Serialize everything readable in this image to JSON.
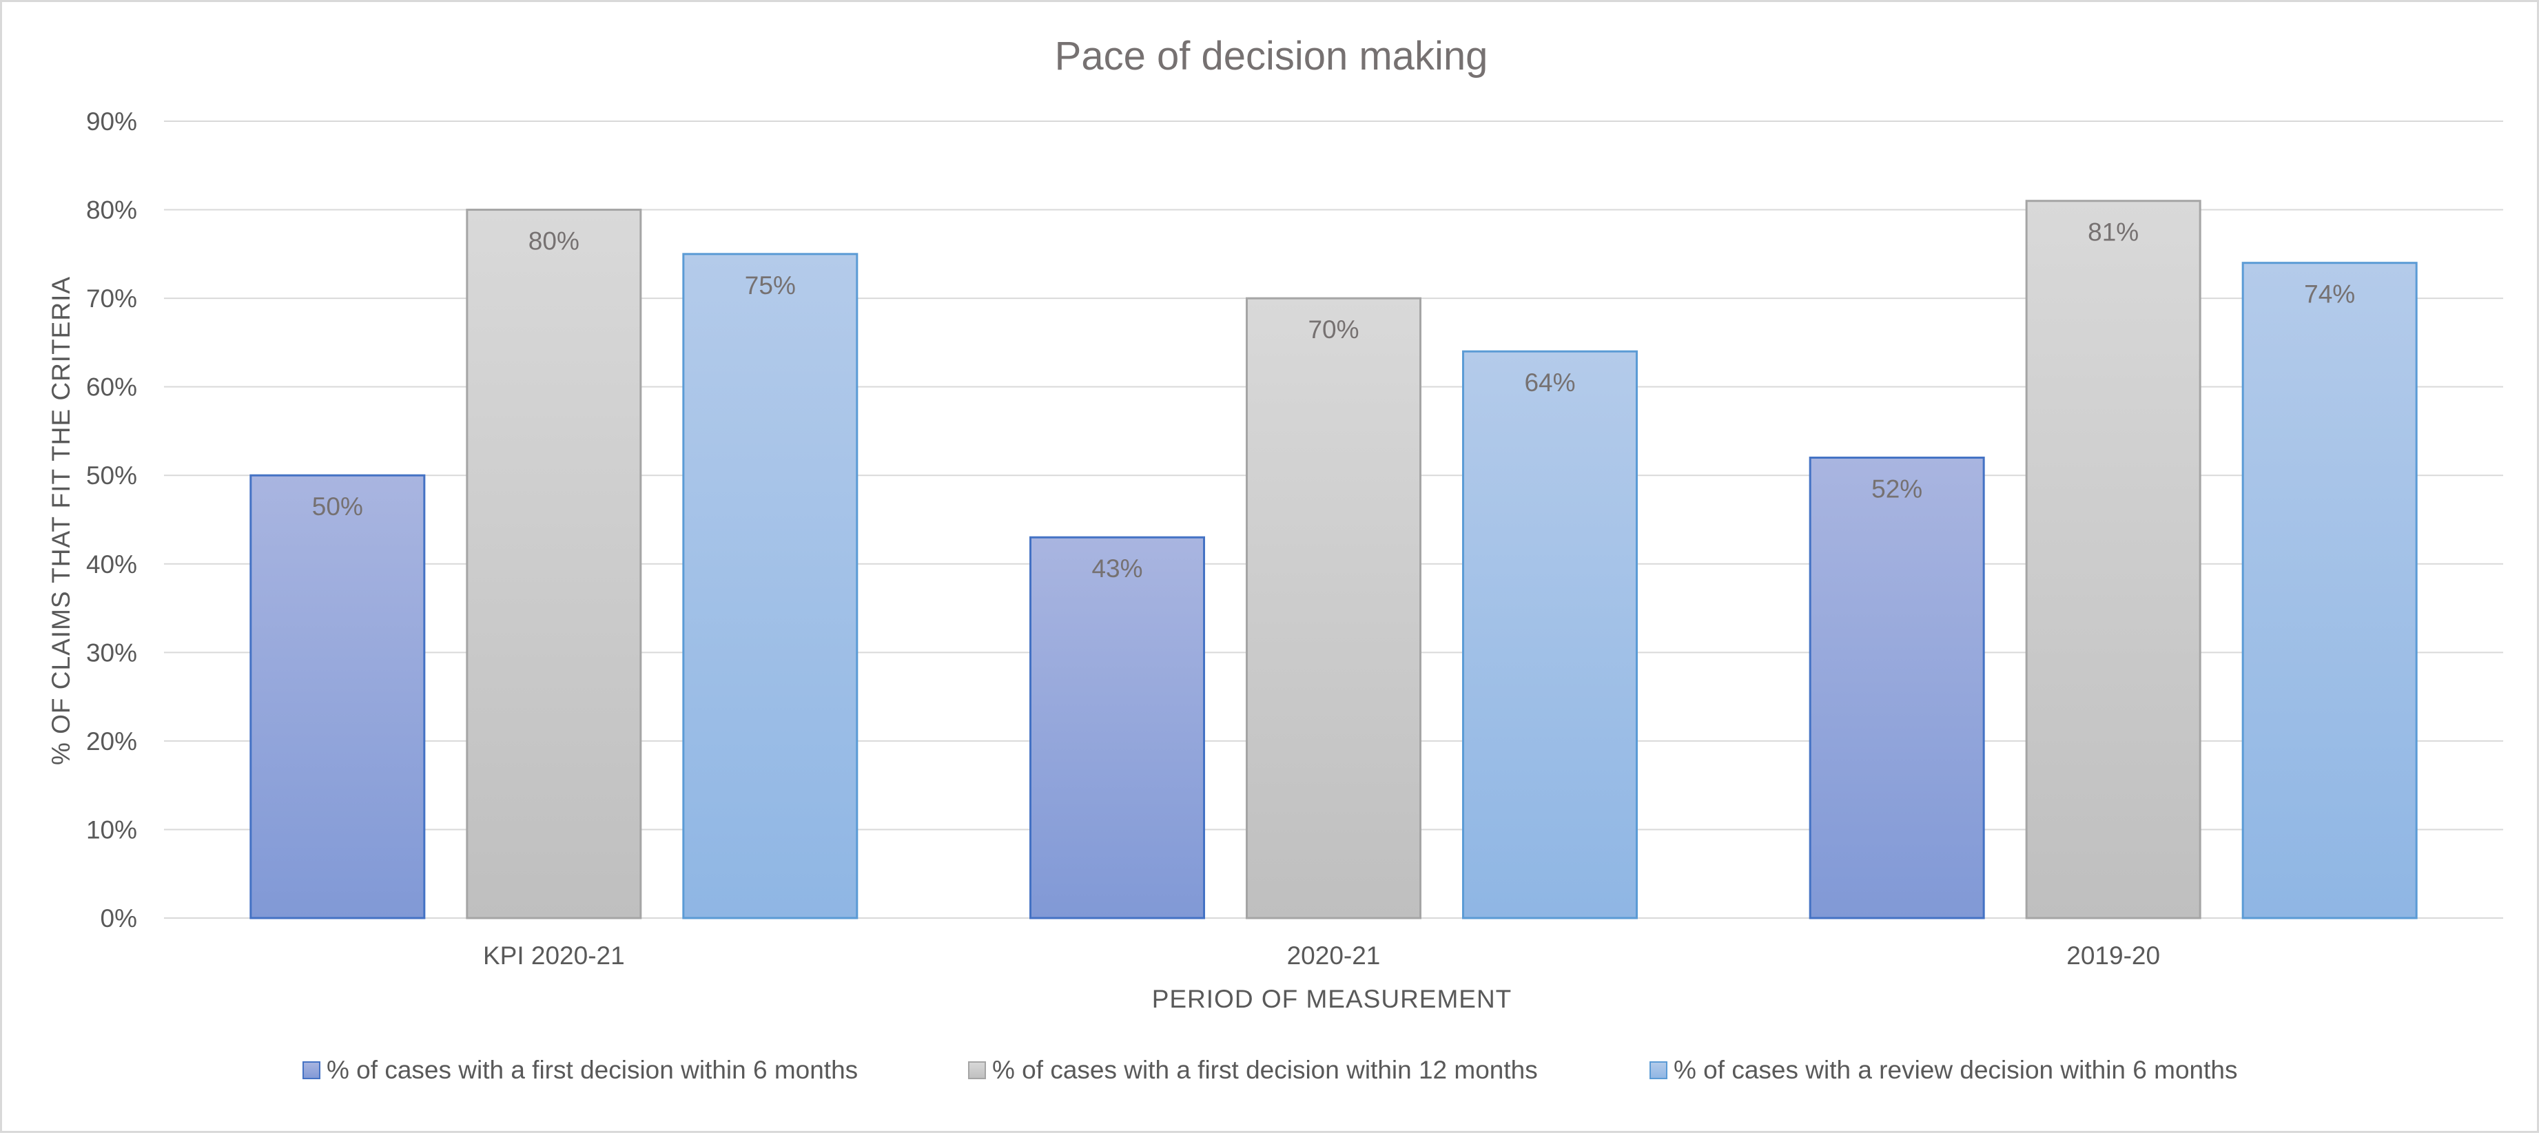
{
  "chart_data": {
    "type": "bar",
    "title": "Pace of decision making",
    "xlabel": "PERIOD OF MEASUREMENT",
    "ylabel": "% OF CLAIMS THAT FIT THE CRITERIA",
    "ylim": [
      0,
      90
    ],
    "yticks": [
      0,
      10,
      20,
      30,
      40,
      50,
      60,
      70,
      80,
      90
    ],
    "ytick_suffix": "%",
    "grid": true,
    "legend_position": "bottom",
    "categories": [
      "KPI 2020-21",
      "2020-21",
      "2019-20"
    ],
    "series": [
      {
        "name": "% of cases with a first decision within 6 months",
        "values": [
          50,
          43,
          52
        ],
        "labels": [
          "50%",
          "43%",
          "52%"
        ],
        "color_top": "#a9b5e0",
        "color_bottom": "#8199d6",
        "stroke": "#4472c4"
      },
      {
        "name": "% of cases with a first decision within 12 months",
        "values": [
          80,
          70,
          81
        ],
        "labels": [
          "80%",
          "70%",
          "81%"
        ],
        "color_top": "#d9d9d9",
        "color_bottom": "#bfbfbf",
        "stroke": "#a5a5a5"
      },
      {
        "name": "% of cases with a review decision within 6 months",
        "values": [
          75,
          64,
          74
        ],
        "labels": [
          "75%",
          "64%",
          "74%"
        ],
        "color_top": "#b4cbea",
        "color_bottom": "#8fb6e4",
        "stroke": "#5b9bd5"
      }
    ]
  }
}
